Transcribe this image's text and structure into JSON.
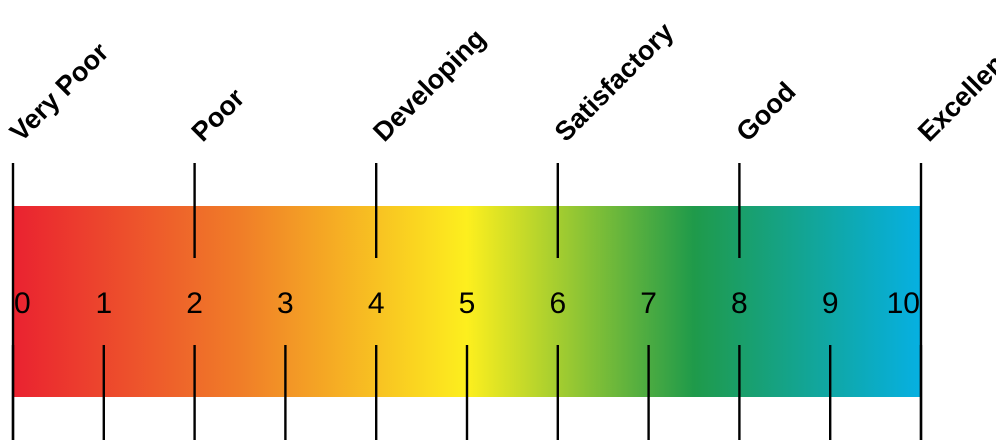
{
  "scale": {
    "numbers": [
      "0",
      "1",
      "2",
      "3",
      "4",
      "5",
      "6",
      "7",
      "8",
      "9",
      "10"
    ],
    "ratings": [
      {
        "label": "Very Poor",
        "value": 0
      },
      {
        "label": "Poor",
        "value": 2
      },
      {
        "label": "Developing",
        "value": 4
      },
      {
        "label": "Satisfactory",
        "value": 6
      },
      {
        "label": "Good",
        "value": 8
      },
      {
        "label": "Excellent",
        "value": 10
      }
    ],
    "gradient_colors": [
      "#ea2230",
      "#f07d28",
      "#fdef1e",
      "#1f9a4a",
      "#06b0e2"
    ],
    "line_color": "#000000"
  }
}
